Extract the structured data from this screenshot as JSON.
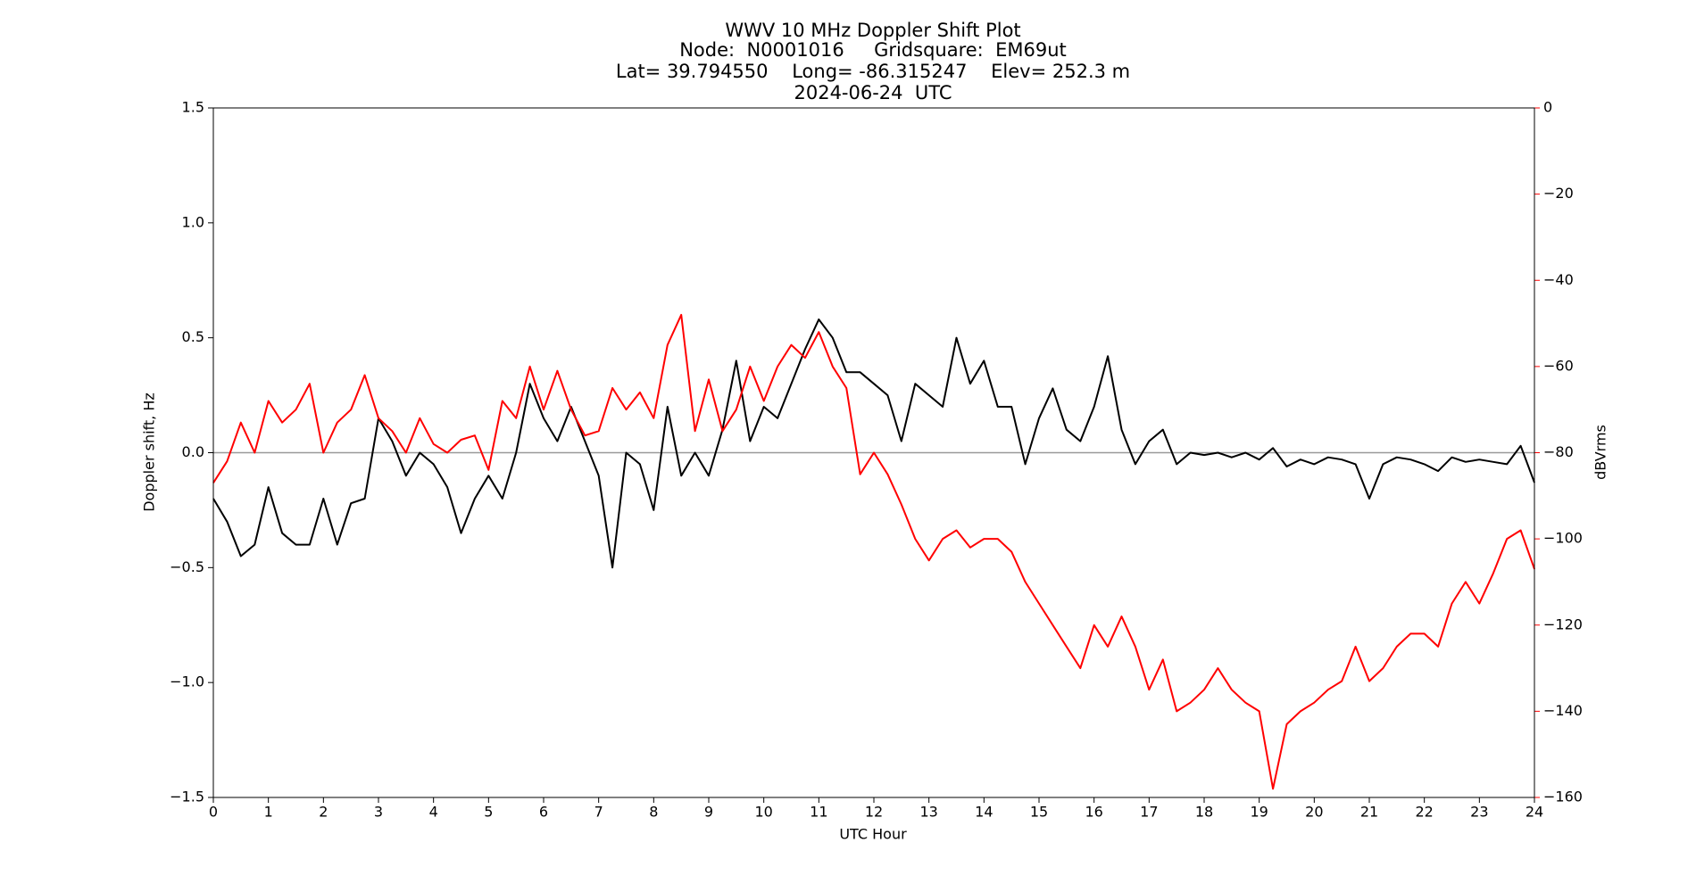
{
  "chart_data": {
    "type": "line",
    "title": "WWV 10 MHz Doppler Shift Plot",
    "subtitle": [
      "Node:  N0001016     Gridsquare:  EM69ut",
      "Lat= 39.794550    Long= -86.315247    Elev= 252.3 m",
      "2024-06-24  UTC"
    ],
    "x_label": "UTC Hour",
    "y_label": "Doppler shift, Hz",
    "y2_label": "dBVrms",
    "x": [
      0,
      0.25,
      0.5,
      0.75,
      1,
      1.25,
      1.5,
      1.75,
      2,
      2.25,
      2.5,
      2.75,
      3,
      3.25,
      3.5,
      3.75,
      4,
      4.25,
      4.5,
      4.75,
      5,
      5.25,
      5.5,
      5.75,
      6,
      6.25,
      6.5,
      6.75,
      7,
      7.25,
      7.5,
      7.75,
      8,
      8.25,
      8.5,
      8.75,
      9,
      9.25,
      9.5,
      9.75,
      10,
      10.25,
      10.5,
      10.75,
      11,
      11.25,
      11.5,
      11.75,
      12,
      12.25,
      12.5,
      12.75,
      13,
      13.25,
      13.5,
      13.75,
      14,
      14.25,
      14.5,
      14.75,
      15,
      15.25,
      15.5,
      15.75,
      16,
      16.25,
      16.5,
      16.75,
      17,
      17.25,
      17.5,
      17.75,
      18,
      18.25,
      18.5,
      18.75,
      19,
      19.25,
      19.5,
      19.75,
      20,
      20.25,
      20.5,
      20.75,
      21,
      21.25,
      21.5,
      21.75,
      22,
      22.25,
      22.5,
      22.75,
      23,
      23.25,
      23.5,
      23.75,
      24
    ],
    "series": [
      {
        "name": "Doppler shift",
        "color": "#000000",
        "axis": "y",
        "values": [
          -0.2,
          -0.3,
          -0.45,
          -0.4,
          -0.15,
          -0.35,
          -0.4,
          -0.4,
          -0.2,
          -0.4,
          -0.22,
          -0.2,
          0.15,
          0.05,
          -0.1,
          0.0,
          -0.05,
          -0.15,
          -0.35,
          -0.2,
          -0.1,
          -0.2,
          0.0,
          0.3,
          0.15,
          0.05,
          0.2,
          0.05,
          -0.1,
          -0.5,
          0.0,
          -0.05,
          -0.25,
          0.2,
          -0.1,
          0.0,
          -0.1,
          0.1,
          0.4,
          0.05,
          0.2,
          0.15,
          0.3,
          0.45,
          0.58,
          0.5,
          0.35,
          0.35,
          0.3,
          0.25,
          0.05,
          0.3,
          0.25,
          0.2,
          0.5,
          0.3,
          0.4,
          0.2,
          0.2,
          -0.05,
          0.15,
          0.28,
          0.1,
          0.05,
          0.2,
          0.42,
          0.1,
          -0.05,
          0.05,
          0.1,
          -0.05,
          0.0,
          -0.01,
          0.0,
          -0.02,
          0.0,
          -0.03,
          0.02,
          -0.06,
          -0.03,
          -0.05,
          -0.02,
          -0.03,
          -0.05,
          -0.2,
          -0.05,
          -0.02,
          -0.03,
          -0.05,
          -0.08,
          -0.02,
          -0.04,
          -0.03,
          -0.04,
          -0.05,
          0.03,
          -0.13
        ]
      },
      {
        "name": "dBVrms",
        "color": "#ff0000",
        "axis": "y2",
        "values": [
          -87,
          -82,
          -73,
          -80,
          -68,
          -73,
          -70,
          -64,
          -80,
          -73,
          -70,
          -62,
          -72,
          -75,
          -80,
          -72,
          -78,
          -80,
          -77,
          -76,
          -84,
          -68,
          -72,
          -60,
          -70,
          -61,
          -70,
          -76,
          -75,
          -65,
          -70,
          -66,
          -72,
          -55,
          -48,
          -75,
          -63,
          -75,
          -70,
          -60,
          -68,
          -60,
          -55,
          -58,
          -52,
          -60,
          -65,
          -85,
          -80,
          -85,
          -92,
          -100,
          -105,
          -100,
          -98,
          -102,
          -100,
          -100,
          -103,
          -110,
          -115,
          -120,
          -125,
          -130,
          -120,
          -125,
          -118,
          -125,
          -135,
          -128,
          -140,
          -138,
          -135,
          -130,
          -135,
          -138,
          -140,
          -158,
          -143,
          -140,
          -138,
          -135,
          -133,
          -125,
          -133,
          -130,
          -125,
          -122,
          -122,
          -125,
          -115,
          -110,
          -115,
          -108,
          -100,
          -98,
          -107
        ]
      }
    ],
    "hline": 0,
    "xlim": [
      0,
      24
    ],
    "xticks": [
      0,
      1,
      2,
      3,
      4,
      5,
      6,
      7,
      8,
      9,
      10,
      11,
      12,
      13,
      14,
      15,
      16,
      17,
      18,
      19,
      20,
      21,
      22,
      23,
      24
    ],
    "ylim": [
      -1.5,
      1.5
    ],
    "yticks": [
      {
        "value": -1.5,
        "label": "−1.5"
      },
      {
        "value": -1.0,
        "label": "−1.0"
      },
      {
        "value": -0.5,
        "label": "−0.5"
      },
      {
        "value": 0,
        "label": "0.0"
      },
      0.5,
      {
        "value": 1.0,
        "label": "1.0"
      },
      1.5
    ],
    "y2lim": [
      -160,
      0
    ],
    "y2ticks": [
      {
        "value": -160,
        "label": "−160"
      },
      {
        "value": -140,
        "label": "−140"
      },
      {
        "value": -120,
        "label": "−120"
      },
      {
        "value": -100,
        "label": "−100"
      },
      {
        "value": -80,
        "label": "−80"
      },
      {
        "value": -60,
        "label": "−60"
      },
      {
        "value": -40,
        "label": "−40"
      },
      {
        "value": -20,
        "label": "−20"
      },
      0
    ]
  }
}
